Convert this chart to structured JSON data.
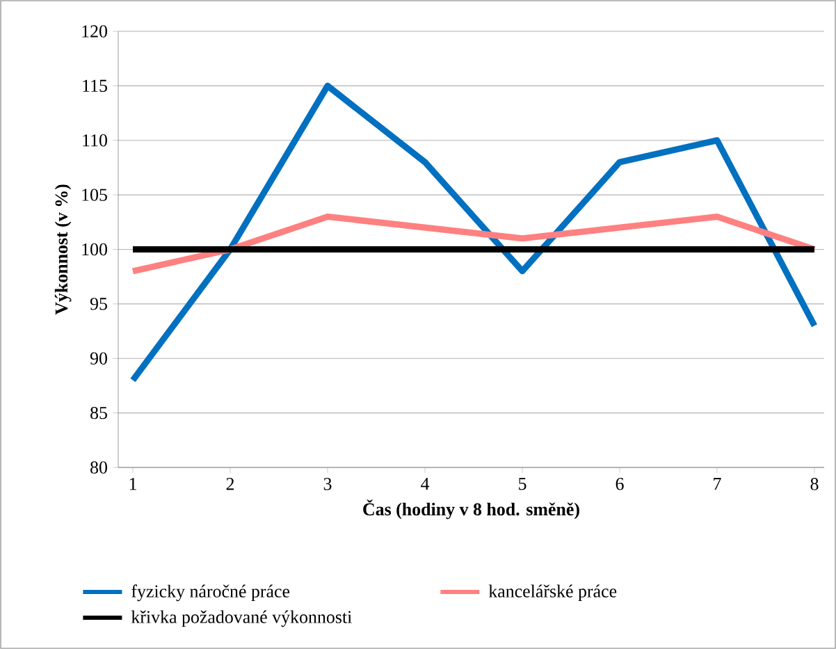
{
  "chart_data": {
    "type": "line",
    "xlabel": "Čas (hodiny v 8 hod. směně)",
    "ylabel": "Výkonnost  (v %)",
    "categories": [
      "1",
      "2",
      "3",
      "4",
      "5",
      "6",
      "7",
      "8"
    ],
    "series": [
      {
        "name": "fyzicky náročné práce",
        "color": "#0070c0",
        "values": [
          88,
          100,
          115,
          108,
          98,
          108,
          110,
          93
        ]
      },
      {
        "name": "kancelářské práce",
        "color": "#ff8080",
        "values": [
          98,
          100,
          103,
          102,
          101,
          102,
          103,
          100
        ]
      },
      {
        "name": "křivka požadované výkonnosti",
        "color": "#000000",
        "values": [
          100,
          100,
          100,
          100,
          100,
          100,
          100,
          100
        ]
      }
    ],
    "ylim": [
      80,
      120
    ],
    "yticks": [
      80,
      85,
      90,
      95,
      100,
      105,
      110,
      115,
      120
    ],
    "grid": "y",
    "legend": "bottom"
  }
}
